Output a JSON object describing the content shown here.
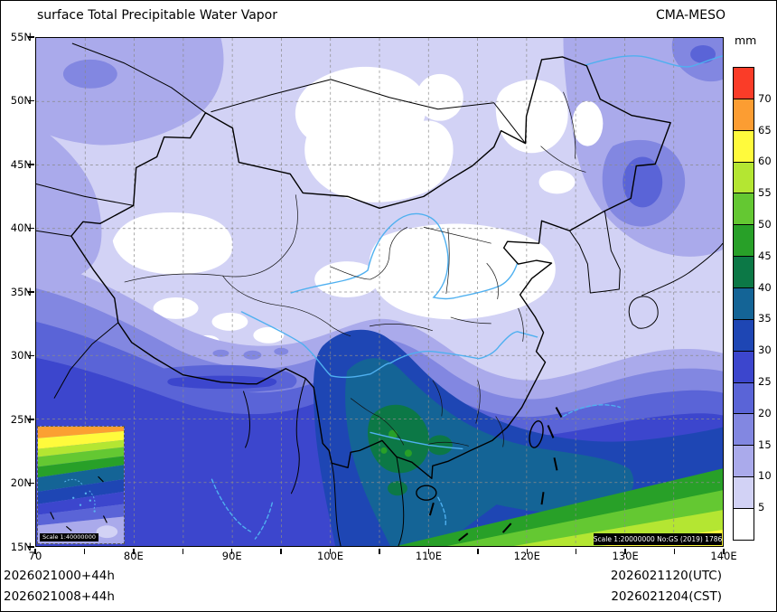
{
  "header": {
    "title": "surface Total Precipitable Water Vapor",
    "model": "CMA-MESO"
  },
  "colorbar": {
    "unit": "mm",
    "tick_labels": [
      "70",
      "65",
      "60",
      "55",
      "50",
      "45",
      "40",
      "35",
      "30",
      "25",
      "20",
      "15",
      "10",
      "5"
    ],
    "cells": [
      {
        "range": ">70",
        "color": "#fa3c28"
      },
      {
        "range": "65-70",
        "color": "#fc9d32"
      },
      {
        "range": "60-65",
        "color": "#fffa3c"
      },
      {
        "range": "55-60",
        "color": "#b4e632"
      },
      {
        "range": "50-55",
        "color": "#64c832"
      },
      {
        "range": "45-50",
        "color": "#28a028"
      },
      {
        "range": "40-45",
        "color": "#0c7846"
      },
      {
        "range": "35-40",
        "color": "#146496"
      },
      {
        "range": "30-35",
        "color": "#1e46b4"
      },
      {
        "range": "25-30",
        "color": "#3c46cd"
      },
      {
        "range": "20-25",
        "color": "#5a64d7"
      },
      {
        "range": "15-20",
        "color": "#8287e1"
      },
      {
        "range": "10-15",
        "color": "#aaaaeb"
      },
      {
        "range": "5-10",
        "color": "#d2d2f5"
      },
      {
        "range": "<5",
        "color": "#ffffff"
      }
    ]
  },
  "axes": {
    "lat": [
      "55N",
      "50N",
      "45N",
      "40N",
      "35N",
      "30N",
      "25N",
      "20N",
      "15N"
    ],
    "lon": [
      "70",
      "80E",
      "90E",
      "100E",
      "110E",
      "120E",
      "130E",
      "140E"
    ]
  },
  "map": {
    "main_scale": "Scale 1:20000000 No:GS (2019) 1786",
    "inset_scale": "Scale 1:40000000"
  },
  "footer": {
    "left_line1": "2026021000+44h",
    "left_line2": "2026021008+44h",
    "right_line1": "2026021120(UTC)",
    "right_line2": "2026021204(CST)"
  },
  "chart_data": {
    "type": "heatmap",
    "title": "surface Total Precipitable Water Vapor",
    "units": "mm",
    "levels": [
      5,
      10,
      15,
      20,
      25,
      30,
      35,
      40,
      45,
      50,
      55,
      60,
      65,
      70
    ],
    "lat_range": [
      15,
      55
    ],
    "lon_range": [
      70,
      140
    ]
  }
}
